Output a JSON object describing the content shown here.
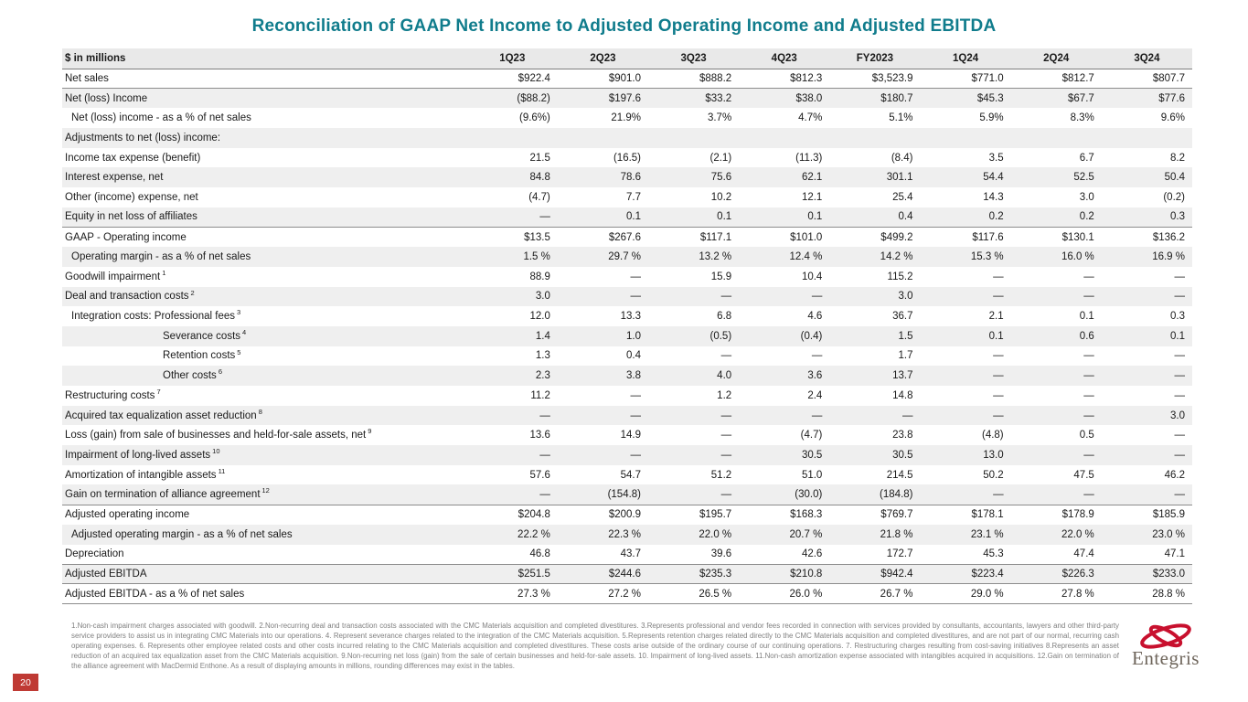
{
  "title": "Reconciliation of GAAP Net Income to Adjusted Operating Income and Adjusted EBITDA",
  "page_number": "20",
  "logo": {
    "text": "Entegris",
    "mark_color": "#C8102E"
  },
  "colors": {
    "title": "#107C8C",
    "row_stripe": "#EFEFEF",
    "page_badge": "#BF3A34"
  },
  "table": {
    "unit_label": "$ in millions",
    "columns": [
      "1Q23",
      "2Q23",
      "3Q23",
      "4Q23",
      "FY2023",
      "1Q24",
      "2Q24",
      "3Q24"
    ],
    "rows": [
      {
        "label": "Net sales",
        "values": [
          "$922.4",
          "$901.0",
          "$888.2",
          "$812.3",
          "$3,523.9",
          "$771.0",
          "$812.7",
          "$807.7"
        ]
      },
      {
        "label": "Net (loss) Income",
        "topline": true,
        "values": [
          "($88.2)",
          "$197.6",
          "$33.2",
          "$38.0",
          "$180.7",
          "$45.3",
          "$67.7",
          "$77.6"
        ]
      },
      {
        "label": "Net (loss) income - as a % of net sales",
        "indent": 1,
        "values": [
          "(9.6%)",
          "21.9%",
          "3.7%",
          "4.7%",
          "5.1%",
          "5.9%",
          "8.3%",
          "9.6%"
        ]
      },
      {
        "label": "Adjustments to net (loss) income:",
        "values": [
          "",
          "",
          "",
          "",
          "",
          "",
          "",
          ""
        ]
      },
      {
        "label": "Income tax expense (benefit)",
        "values": [
          "21.5",
          "(16.5)",
          "(2.1)",
          "(11.3)",
          "(8.4)",
          "3.5",
          "6.7",
          "8.2"
        ]
      },
      {
        "label": "Interest expense, net",
        "values": [
          "84.8",
          "78.6",
          "75.6",
          "62.1",
          "301.1",
          "54.4",
          "52.5",
          "50.4"
        ]
      },
      {
        "label": "Other (income) expense, net",
        "values": [
          "(4.7)",
          "7.7",
          "10.2",
          "12.1",
          "25.4",
          "14.3",
          "3.0",
          "(0.2)"
        ]
      },
      {
        "label": "Equity in net loss of affiliates",
        "values": [
          "—",
          "0.1",
          "0.1",
          "0.1",
          "0.4",
          "0.2",
          "0.2",
          "0.3"
        ]
      },
      {
        "label": "GAAP - Operating income",
        "topline": true,
        "values": [
          "$13.5",
          "$267.6",
          "$117.1",
          "$101.0",
          "$499.2",
          "$117.6",
          "$130.1",
          "$136.2"
        ]
      },
      {
        "label": "Operating margin - as a % of net sales",
        "indent": 1,
        "values": [
          "1.5 %",
          "29.7 %",
          "13.2 %",
          "12.4 %",
          "14.2 %",
          "15.3 %",
          "16.0 %",
          "16.9 %"
        ]
      },
      {
        "label": "Goodwill impairment",
        "sup": "1",
        "values": [
          "88.9",
          "—",
          "15.9",
          "10.4",
          "115.2",
          "—",
          "—",
          "—"
        ]
      },
      {
        "label": "Deal and transaction costs",
        "sup": "2",
        "values": [
          "3.0",
          "—",
          "—",
          "—",
          "3.0",
          "—",
          "—",
          "—"
        ]
      },
      {
        "label": "Integration costs: Professional fees",
        "sup": "3",
        "indent": 1,
        "values": [
          "12.0",
          "13.3",
          "6.8",
          "4.6",
          "36.7",
          "2.1",
          "0.1",
          "0.3"
        ]
      },
      {
        "label": "Severance costs",
        "sup": "4",
        "indent": 2,
        "values": [
          "1.4",
          "1.0",
          "(0.5)",
          "(0.4)",
          "1.5",
          "0.1",
          "0.6",
          "0.1"
        ]
      },
      {
        "label": "Retention costs",
        "sup": "5",
        "indent": 2,
        "values": [
          "1.3",
          "0.4",
          "—",
          "—",
          "1.7",
          "—",
          "—",
          "—"
        ]
      },
      {
        "label": "Other costs",
        "sup": "6",
        "indent": 2,
        "values": [
          "2.3",
          "3.8",
          "4.0",
          "3.6",
          "13.7",
          "—",
          "—",
          "—"
        ]
      },
      {
        "label": "Restructuring costs",
        "sup": "7",
        "values": [
          "11.2",
          "—",
          "1.2",
          "2.4",
          "14.8",
          "—",
          "—",
          "—"
        ]
      },
      {
        "label": "Acquired tax equalization asset reduction",
        "sup": "8",
        "values": [
          "—",
          "—",
          "—",
          "—",
          "—",
          "—",
          "—",
          "3.0"
        ]
      },
      {
        "label": "Loss (gain) from sale of businesses and held-for-sale assets, net",
        "sup": "9",
        "values": [
          "13.6",
          "14.9",
          "—",
          "(4.7)",
          "23.8",
          "(4.8)",
          "0.5",
          "—"
        ]
      },
      {
        "label": "Impairment of long-lived assets",
        "sup": "10",
        "values": [
          "—",
          "—",
          "—",
          "30.5",
          "30.5",
          "13.0",
          "—",
          "—"
        ]
      },
      {
        "label": "Amortization of intangible assets",
        "sup": "11",
        "values": [
          "57.6",
          "54.7",
          "51.2",
          "51.0",
          "214.5",
          "50.2",
          "47.5",
          "46.2"
        ]
      },
      {
        "label": "Gain on termination of alliance agreement",
        "sup": "12",
        "values": [
          "—",
          "(154.8)",
          "—",
          "(30.0)",
          "(184.8)",
          "—",
          "—",
          "—"
        ]
      },
      {
        "label": "Adjusted operating income",
        "topline": true,
        "values": [
          "$204.8",
          "$200.9",
          "$195.7",
          "$168.3",
          "$769.7",
          "$178.1",
          "$178.9",
          "$185.9"
        ]
      },
      {
        "label": "Adjusted operating margin - as a % of net sales",
        "indent": 1,
        "values": [
          "22.2 %",
          "22.3 %",
          "22.0 %",
          "20.7 %",
          "21.8 %",
          "23.1 %",
          "22.0 %",
          "23.0 %"
        ]
      },
      {
        "label": "Depreciation",
        "values": [
          "46.8",
          "43.7",
          "39.6",
          "42.6",
          "172.7",
          "45.3",
          "47.4",
          "47.1"
        ]
      },
      {
        "label": "Adjusted EBITDA",
        "topline": true,
        "values": [
          "$251.5",
          "$244.6",
          "$235.3",
          "$210.8",
          "$942.4",
          "$223.4",
          "$226.3",
          "$233.0"
        ]
      },
      {
        "label": "Adjusted EBITDA - as a % of net sales",
        "topline": true,
        "bottomline": true,
        "values": [
          "27.3 %",
          "27.2 %",
          "26.5 %",
          "26.0 %",
          "26.7 %",
          "29.0 %",
          "27.8 %",
          "28.8 %"
        ]
      }
    ]
  },
  "footnotes": "1.Non-cash impairment charges associated with goodwill.  2.Non-recurring deal and transaction costs associated with the CMC Materials acquisition and completed divestitures.  3.Represents professional and vendor fees recorded in connection with services provided by consultants, accountants, lawyers and other third-party service providers to assist us in integrating CMC Materials into our operations.  4. Represent severance charges related to the integration of the CMC Materials acquisition.  5.Represents retention charges related directly to the CMC Materials acquisition and completed divestitures, and are not part of our normal, recurring cash operating expenses.  6. Represents other employee related costs and other costs incurred relating to the CMC Materials acquisition and completed divestitures.  These costs arise outside of the ordinary course of our continuing operations.  7. Restructuring charges resulting from cost-saving initiatives  8.Represents an asset reduction of an acquired tax equalization asset from the CMC Materials acquisition. 9.Non-recurring net loss (gain) from the sale of certain businesses and held-for-sale assets. 10. Impairment of long-lived assets. 11.Non-cash amortization expense associated with intangibles acquired in acquisitions.  12.Gain on termination of the alliance agreement with MacDermid Enthone.  As a result of displaying amounts in millions, rounding differences may exist in the tables."
}
